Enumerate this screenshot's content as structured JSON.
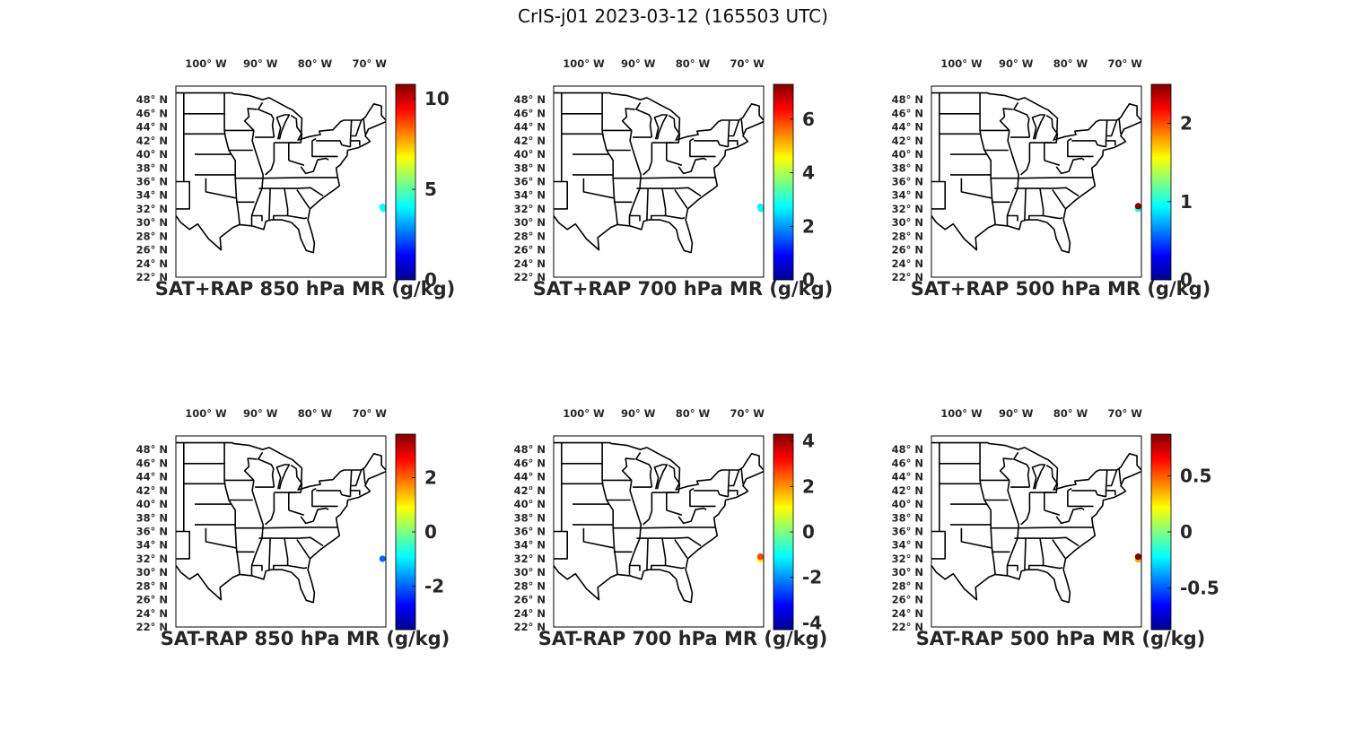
{
  "figure_title": "CrIS-j01 2023-03-12 (165503 UTC)",
  "colormap": [
    "#00008f",
    "#0000ff",
    "#0080ff",
    "#00ffff",
    "#80ff80",
    "#ffff00",
    "#ff8000",
    "#ff0000",
    "#800000"
  ],
  "map_extent": {
    "lon": [
      -105.5,
      -67
    ],
    "lat": [
      22,
      50
    ]
  },
  "chart_data": [
    {
      "type": "map",
      "title": "SAT+RAP 850 hPa MR (g/kg)",
      "x_ticks": [
        -100,
        -90,
        -80,
        -70
      ],
      "x_tick_labels": [
        "100° W",
        "90° W",
        "80° W",
        "70° W"
      ],
      "y_ticks": [
        22,
        24,
        26,
        28,
        30,
        32,
        34,
        36,
        38,
        40,
        42,
        44,
        46,
        48
      ],
      "y_tick_labels": [
        "22° N",
        "24° N",
        "26° N",
        "28° N",
        "30° N",
        "32° N",
        "34° N",
        "36° N",
        "38° N",
        "40° N",
        "42° N",
        "44° N",
        "46° N",
        "48° N"
      ],
      "colorbar": {
        "range": [
          0,
          10.8
        ],
        "ticks": [
          0,
          5,
          10
        ],
        "tick_labels": [
          "0",
          "5",
          "10"
        ]
      },
      "points": [
        {
          "lon": -67.6,
          "lat": 32.3,
          "value": 4.0
        },
        {
          "lon": -67.5,
          "lat": 32.0,
          "value": 4.2
        }
      ]
    },
    {
      "type": "map",
      "title": "SAT+RAP 700 hPa MR (g/kg)",
      "x_ticks": [
        -100,
        -90,
        -80,
        -70
      ],
      "x_tick_labels": [
        "100° W",
        "90° W",
        "80° W",
        "70° W"
      ],
      "y_ticks": [
        22,
        24,
        26,
        28,
        30,
        32,
        34,
        36,
        38,
        40,
        42,
        44,
        46,
        48
      ],
      "y_tick_labels": [
        "22° N",
        "24° N",
        "26° N",
        "28° N",
        "30° N",
        "32° N",
        "34° N",
        "36° N",
        "38° N",
        "40° N",
        "42° N",
        "44° N",
        "46° N",
        "48° N"
      ],
      "colorbar": {
        "range": [
          0,
          7.3
        ],
        "ticks": [
          0,
          2,
          4,
          6
        ],
        "tick_labels": [
          "0",
          "2",
          "4",
          "6"
        ]
      },
      "points": [
        {
          "lon": -67.6,
          "lat": 32.3,
          "value": 2.6
        },
        {
          "lon": -67.5,
          "lat": 32.0,
          "value": 2.8
        }
      ]
    },
    {
      "type": "map",
      "title": "SAT+RAP 500 hPa MR (g/kg)",
      "x_ticks": [
        -100,
        -90,
        -80,
        -70
      ],
      "x_tick_labels": [
        "100° W",
        "90° W",
        "80° W",
        "70° W"
      ],
      "y_ticks": [
        22,
        24,
        26,
        28,
        30,
        32,
        34,
        36,
        38,
        40,
        42,
        44,
        46,
        48
      ],
      "y_tick_labels": [
        "22° N",
        "24° N",
        "26° N",
        "28° N",
        "30° N",
        "32° N",
        "34° N",
        "36° N",
        "38° N",
        "40° N",
        "42° N",
        "44° N",
        "46° N",
        "48° N"
      ],
      "colorbar": {
        "range": [
          0,
          2.5
        ],
        "ticks": [
          0,
          1,
          2
        ],
        "tick_labels": [
          "0",
          "1",
          "2"
        ]
      },
      "points": [
        {
          "lon": -67.6,
          "lat": 32.0,
          "value": 1.0
        },
        {
          "lon": -67.6,
          "lat": 32.4,
          "value": 2.5
        }
      ]
    },
    {
      "type": "map",
      "title": "SAT-RAP 850 hPa MR (g/kg)",
      "x_ticks": [
        -100,
        -90,
        -80,
        -70
      ],
      "x_tick_labels": [
        "100° W",
        "90° W",
        "80° W",
        "70° W"
      ],
      "y_ticks": [
        22,
        24,
        26,
        28,
        30,
        32,
        34,
        36,
        38,
        40,
        42,
        44,
        46,
        48
      ],
      "y_tick_labels": [
        "22° N",
        "24° N",
        "26° N",
        "28° N",
        "30° N",
        "32° N",
        "34° N",
        "36° N",
        "38° N",
        "40° N",
        "42° N",
        "44° N",
        "46° N",
        "48° N"
      ],
      "colorbar": {
        "range": [
          -3.6,
          3.6
        ],
        "ticks": [
          -2,
          0,
          2
        ],
        "tick_labels": [
          "-2",
          "0",
          "2"
        ]
      },
      "points": [
        {
          "lon": -67.6,
          "lat": 32.0,
          "value": -2.0
        }
      ]
    },
    {
      "type": "map",
      "title": "SAT-RAP 700 hPa MR (g/kg)",
      "x_ticks": [
        -100,
        -90,
        -80,
        -70
      ],
      "x_tick_labels": [
        "100° W",
        "90° W",
        "80° W",
        "70° W"
      ],
      "y_ticks": [
        22,
        24,
        26,
        28,
        30,
        32,
        34,
        36,
        38,
        40,
        42,
        44,
        46,
        48
      ],
      "y_tick_labels": [
        "22° N",
        "24° N",
        "26° N",
        "28° N",
        "30° N",
        "32° N",
        "34° N",
        "36° N",
        "38° N",
        "40° N",
        "42° N",
        "44° N",
        "46° N",
        "48° N"
      ],
      "colorbar": {
        "range": [
          -4.3,
          4.3
        ],
        "ticks": [
          -4,
          -2,
          0,
          2,
          4
        ],
        "tick_labels": [
          "-4",
          "-2",
          "0",
          "2",
          "4"
        ]
      },
      "points": [
        {
          "lon": -67.6,
          "lat": 31.9,
          "value": 1.2
        },
        {
          "lon": -67.6,
          "lat": 32.3,
          "value": 2.6
        }
      ]
    },
    {
      "type": "map",
      "title": "SAT-RAP 500 hPa MR (g/kg)",
      "x_ticks": [
        -100,
        -90,
        -80,
        -70
      ],
      "x_tick_labels": [
        "100° W",
        "90° W",
        "80° W",
        "70° W"
      ],
      "y_ticks": [
        22,
        24,
        26,
        28,
        30,
        32,
        34,
        36,
        38,
        40,
        42,
        44,
        46,
        48
      ],
      "y_tick_labels": [
        "22° N",
        "24° N",
        "26° N",
        "28° N",
        "30° N",
        "32° N",
        "34° N",
        "36° N",
        "38° N",
        "40° N",
        "42° N",
        "44° N",
        "46° N",
        "48° N"
      ],
      "colorbar": {
        "range": [
          -0.87,
          0.87
        ],
        "ticks": [
          -0.5,
          0,
          0.5
        ],
        "tick_labels": [
          "-0.5",
          "0",
          "0.5"
        ]
      },
      "points": [
        {
          "lon": -67.6,
          "lat": 31.9,
          "value": 0.35
        },
        {
          "lon": -67.6,
          "lat": 32.3,
          "value": 0.87
        }
      ]
    }
  ]
}
